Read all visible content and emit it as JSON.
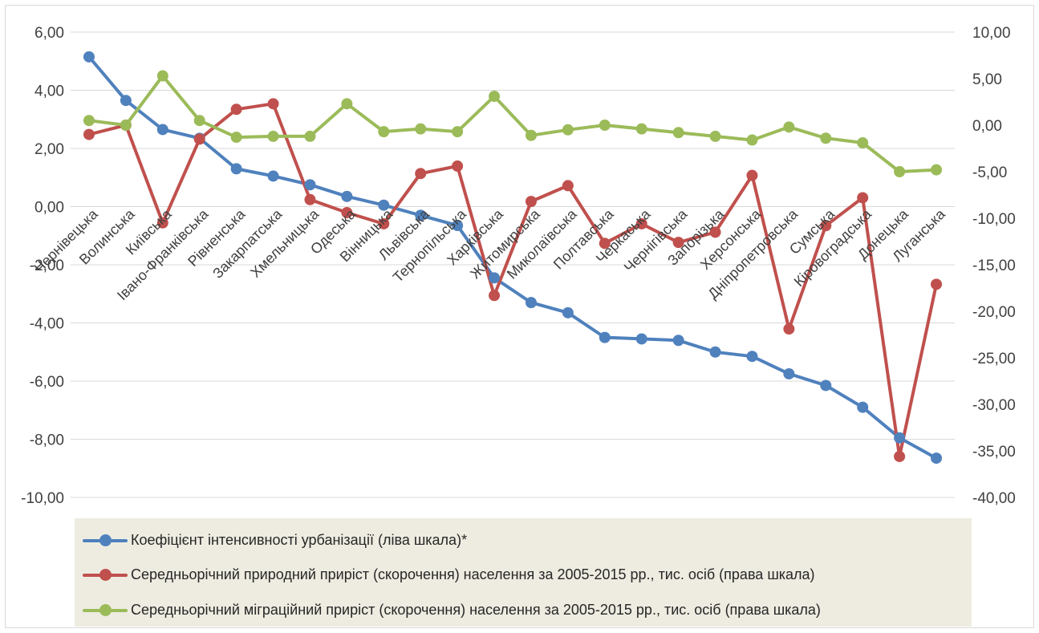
{
  "chart_data": {
    "type": "line",
    "categories": [
      "Чернівецька",
      "Волинська",
      "Київська",
      "Івано-Франківська",
      "Рівненська",
      "Закарпатська",
      "Хмельницька",
      "Одеська",
      "Вінницька",
      "Львівська",
      "Тернопільська",
      "Харківська",
      "Житомирська",
      "Миколаївська",
      "Полтавська",
      "Черкаська",
      "Чернігівська",
      "Запорізька",
      "Херсонська",
      "Дніпропетровська",
      "Сумська",
      "Кіровоградська",
      "Донецька",
      "Луганська"
    ],
    "left_axis": {
      "ylim": [
        -10,
        6
      ],
      "ticks": [
        "6,00",
        "4,00",
        "2,00",
        "0,00",
        "-2,00",
        "-4,00",
        "-6,00",
        "-8,00",
        "-10,00"
      ]
    },
    "right_axis": {
      "ylim": [
        -40,
        10
      ],
      "ticks": [
        "10,00",
        "5,00",
        "0,00",
        "-5,00",
        "-10,00",
        "-15,00",
        "-20,00",
        "-25,00",
        "-30,00",
        "-35,00",
        "-40,00"
      ]
    },
    "grid": true,
    "legend_position": "bottom",
    "series": [
      {
        "name": "Коефіцієнт інтенсивності урбанізації (ліва шкала)*",
        "axis": "left",
        "color": "#4f81bd",
        "values": [
          5.15,
          3.65,
          2.65,
          2.35,
          1.3,
          1.05,
          0.75,
          0.35,
          0.05,
          -0.3,
          -0.65,
          -2.45,
          -3.3,
          -3.65,
          -4.5,
          -4.55,
          -4.6,
          -5.0,
          -5.15,
          -5.75,
          -6.15,
          -6.9,
          -7.95,
          -8.65
        ]
      },
      {
        "name": "Середньорічний природний приріст (скорочення) населення за 2005-2015 рр., тис. осіб (права шкала)",
        "axis": "right",
        "color": "#c0504d",
        "values": [
          -1.0,
          0.0,
          -10.5,
          -1.5,
          1.7,
          2.3,
          -8.0,
          -9.4,
          -10.6,
          -5.2,
          -4.4,
          -18.3,
          -8.2,
          -6.5,
          -12.7,
          -10.6,
          -12.6,
          -11.5,
          -5.4,
          -21.9,
          -10.8,
          -7.8,
          -35.6,
          -17.1
        ]
      },
      {
        "name": "Середньорічний міграційний приріст (скорочення) населення за 2005-2015 рр., тис. осіб (права шкала)",
        "axis": "right",
        "color": "#9bbb59",
        "values": [
          0.5,
          0.0,
          5.3,
          0.5,
          -1.3,
          -1.2,
          -1.2,
          2.3,
          -0.7,
          -0.4,
          -0.7,
          3.1,
          -1.1,
          -0.5,
          0.0,
          -0.4,
          -0.8,
          -1.2,
          -1.6,
          -0.2,
          -1.4,
          -1.9,
          -5.0,
          -4.8
        ]
      }
    ]
  }
}
